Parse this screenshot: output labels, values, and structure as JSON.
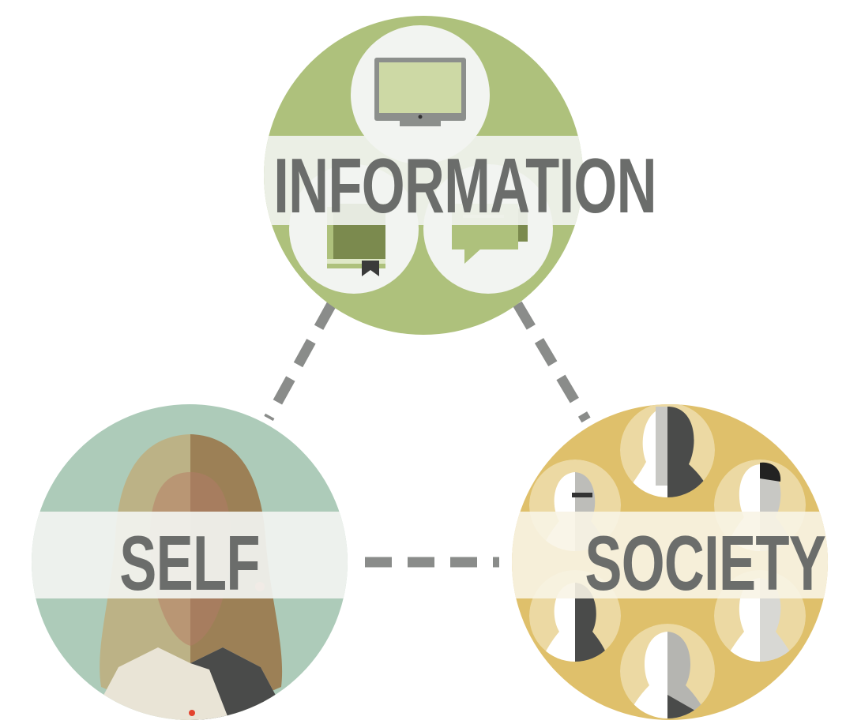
{
  "nodes": {
    "information": {
      "label": "INFORMATION",
      "color": "#aec17c",
      "icons": [
        "monitor-icon",
        "book-icon",
        "chat-bubble-icon"
      ]
    },
    "self": {
      "label": "SELF",
      "color": "#adcbb9",
      "icons": [
        "woman-portrait-icon"
      ]
    },
    "society": {
      "label": "SOCIETY",
      "color": "#dfc06b",
      "icons": [
        "person-silhouette-icon"
      ]
    }
  },
  "connectors": [
    {
      "from": "information",
      "to": "self",
      "style": "dashed"
    },
    {
      "from": "information",
      "to": "society",
      "style": "dashed"
    },
    {
      "from": "self",
      "to": "society",
      "style": "dashed"
    }
  ],
  "colors": {
    "band": "#f2f4f1",
    "text": "#6b6d6b",
    "connector": "#8a8c8a"
  }
}
